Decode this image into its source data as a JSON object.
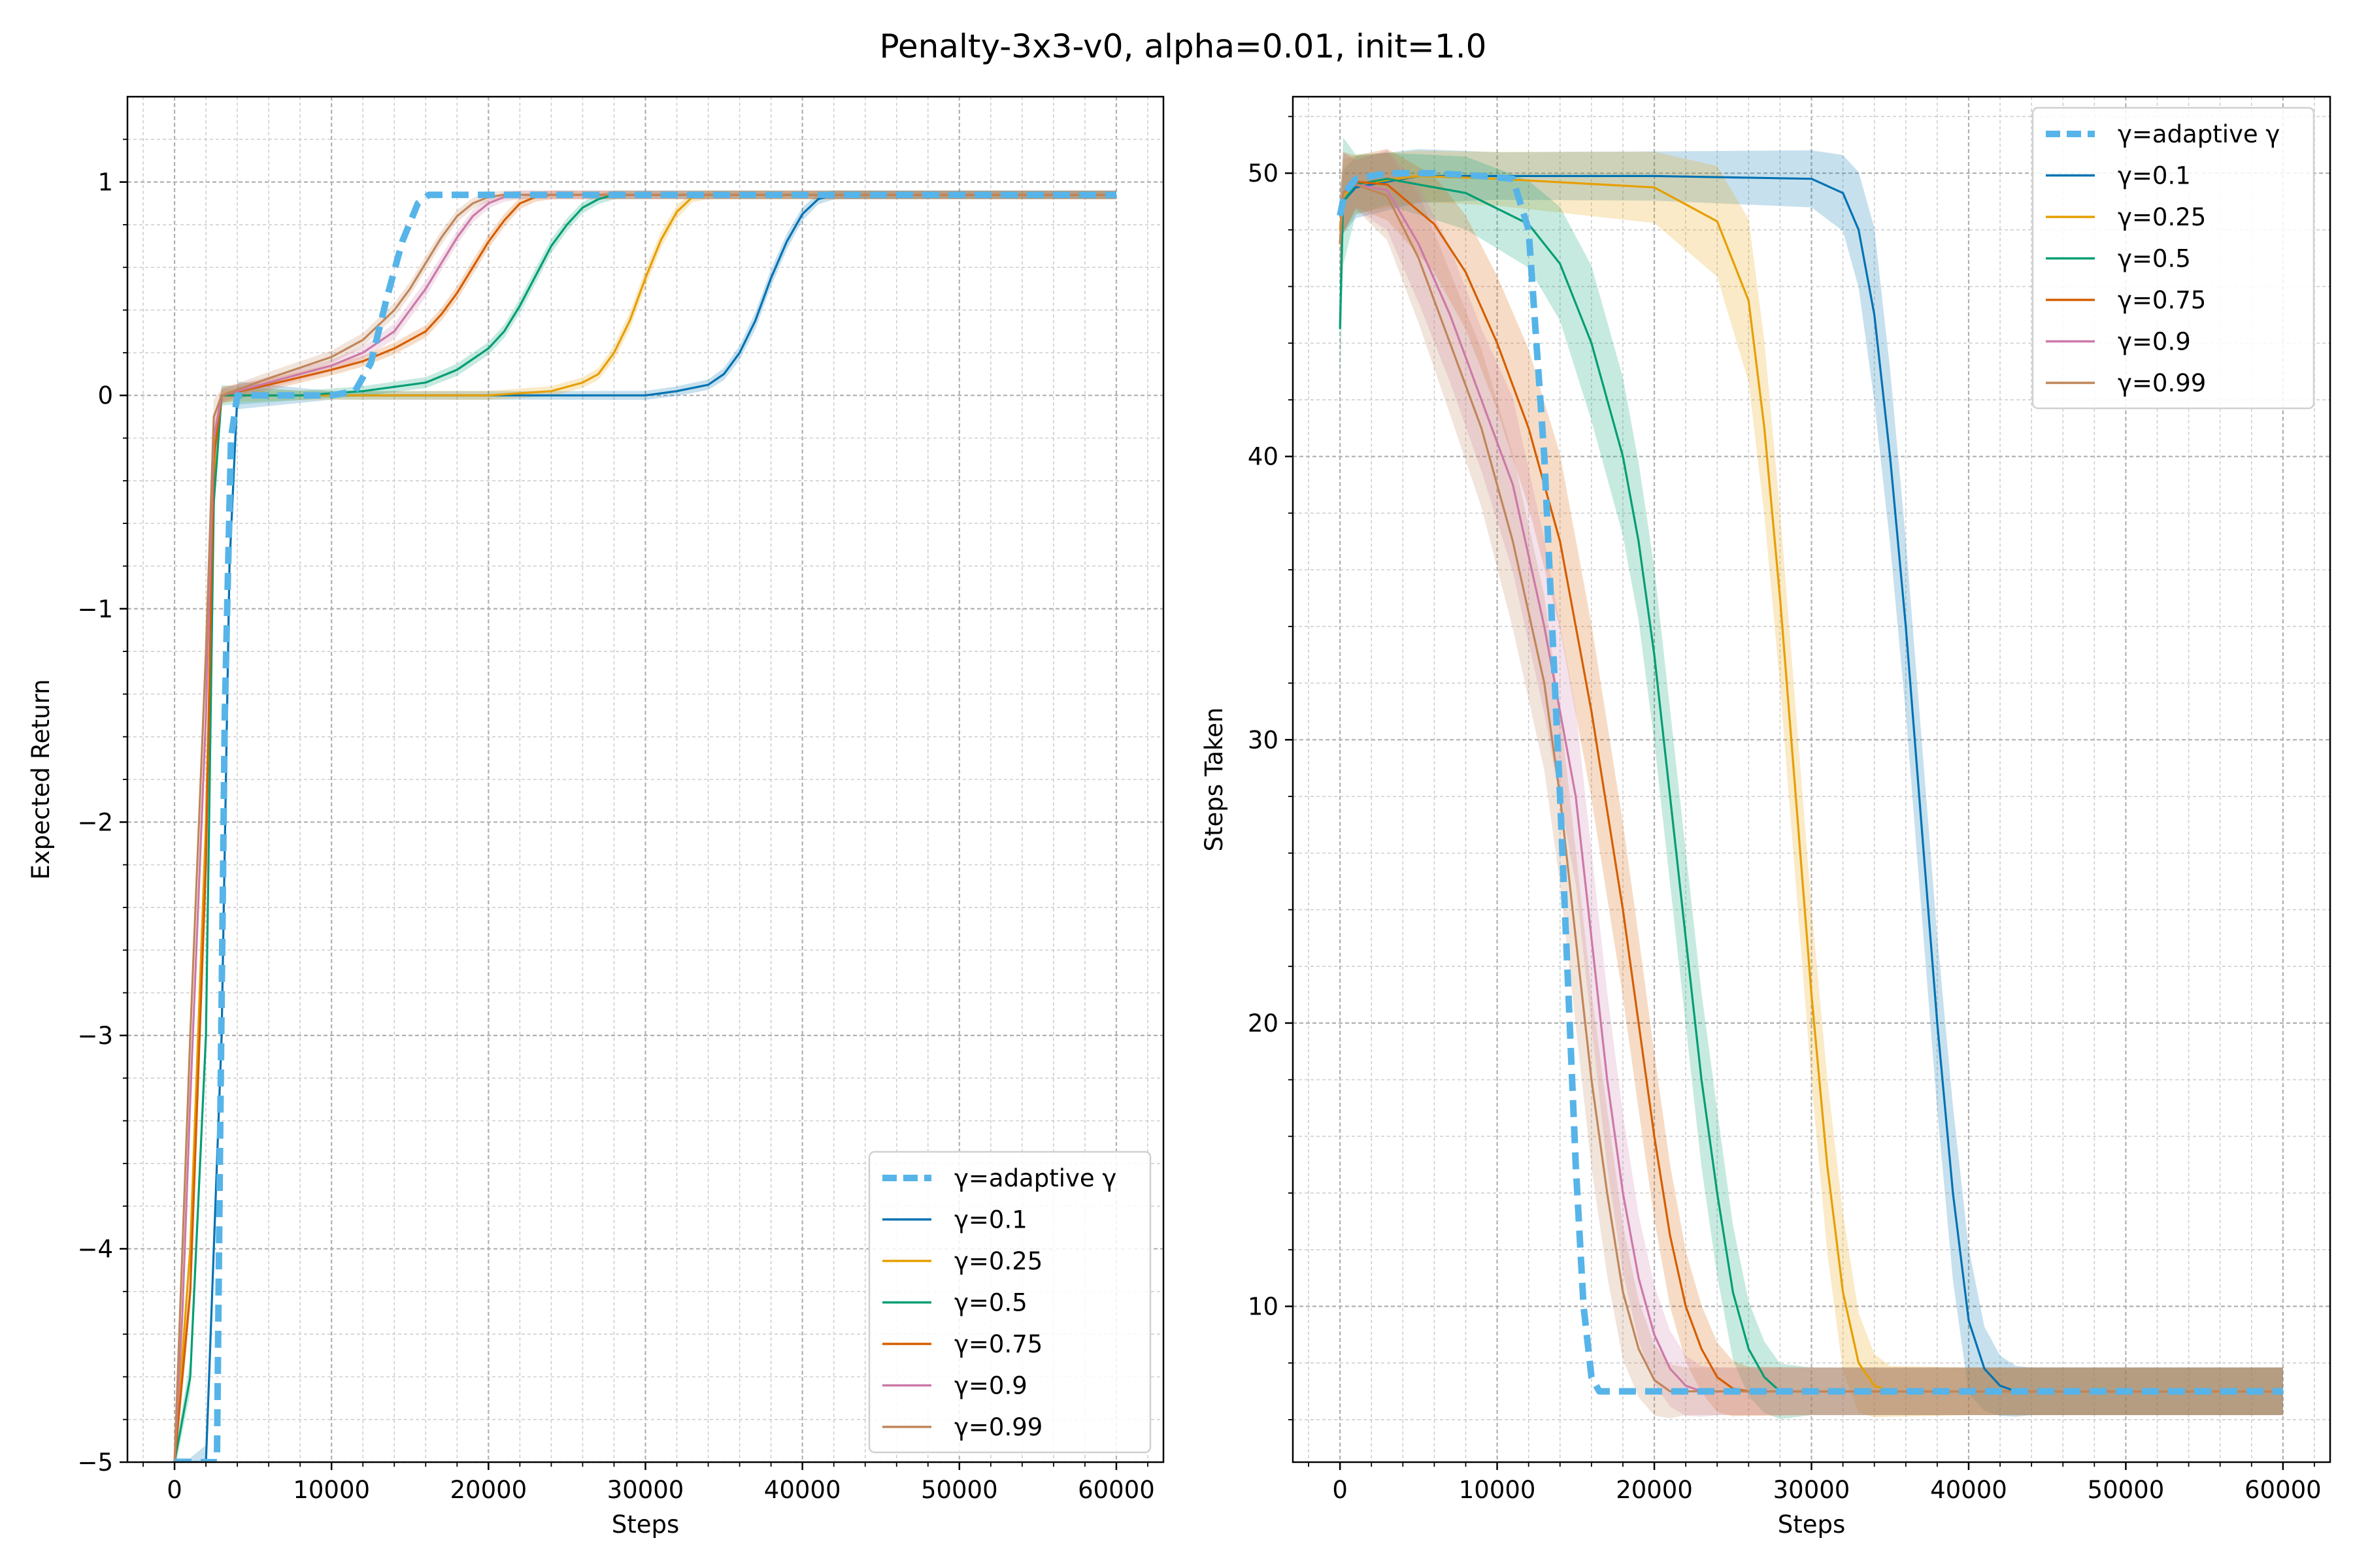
{
  "title": "Penalty-3x3-v0, alpha=0.01, init=1.0",
  "colors": {
    "adaptive": "#56b4e9",
    "g01": "#0072b2",
    "g025": "#e69f00",
    "g05": "#009e73",
    "g075": "#d55e00",
    "g09": "#cc79a7",
    "g099": "#c0865a"
  },
  "chart_data": [
    {
      "type": "line",
      "title": "",
      "xlabel": "Steps",
      "ylabel": "Expected Return",
      "xlim": [
        -3000,
        63000
      ],
      "ylim": [
        -5,
        1.4
      ],
      "xticks": [
        0,
        10000,
        20000,
        30000,
        40000,
        50000,
        60000
      ],
      "yticks": [
        -5,
        -4,
        -3,
        -2,
        -1,
        0,
        1
      ],
      "ytick_labels": [
        "−5",
        "−4",
        "−3",
        "−2",
        "−1",
        "0",
        "1"
      ],
      "grid": true,
      "legend_position": "lower-right",
      "series": [
        {
          "name": "γ=adaptive γ",
          "key": "adaptive",
          "dashed": true,
          "x": [
            0,
            1000,
            2000,
            2700,
            2900,
            3200,
            3600,
            4000,
            6000,
            8000,
            10000,
            11500,
            12500,
            13500,
            14500,
            15500,
            16200,
            17000,
            20000,
            30000,
            40000,
            50000,
            60000
          ],
          "y": [
            -5,
            -5,
            -5,
            -5,
            -3.5,
            -1.5,
            -0.2,
            0.0,
            0.0,
            0.0,
            0.0,
            0.02,
            0.15,
            0.45,
            0.72,
            0.9,
            0.94,
            0.94,
            0.94,
            0.94,
            0.94,
            0.94,
            0.94
          ]
        },
        {
          "name": "γ=0.1",
          "key": "g01",
          "x": [
            0,
            1000,
            2000,
            3000,
            3500,
            4000,
            10000,
            20000,
            30000,
            32000,
            34000,
            35000,
            36000,
            37000,
            38000,
            39000,
            40000,
            41000,
            42000,
            45000,
            50000,
            60000
          ],
          "y": [
            -5,
            -5,
            -5,
            -3.0,
            -0.8,
            0.0,
            0.0,
            0.0,
            0.0,
            0.02,
            0.05,
            0.1,
            0.2,
            0.35,
            0.55,
            0.72,
            0.85,
            0.92,
            0.94,
            0.94,
            0.94,
            0.94
          ]
        },
        {
          "name": "γ=0.25",
          "key": "g025",
          "x": [
            0,
            1000,
            2000,
            2600,
            3000,
            10000,
            20000,
            24000,
            26000,
            27000,
            28000,
            29000,
            30000,
            31000,
            32000,
            33000,
            34000,
            40000,
            50000,
            60000
          ],
          "y": [
            -5,
            -4.0,
            -2.0,
            -0.2,
            0.0,
            0.0,
            0.0,
            0.02,
            0.06,
            0.1,
            0.2,
            0.35,
            0.55,
            0.73,
            0.86,
            0.93,
            0.94,
            0.94,
            0.94,
            0.94
          ]
        },
        {
          "name": "γ=0.5",
          "key": "g05",
          "x": [
            0,
            1000,
            2000,
            2500,
            3000,
            8000,
            12000,
            16000,
            18000,
            20000,
            21000,
            22000,
            23000,
            24000,
            25000,
            26000,
            27000,
            28000,
            30000,
            40000,
            50000,
            60000
          ],
          "y": [
            -5,
            -4.6,
            -3.0,
            -0.5,
            0.0,
            0.0,
            0.02,
            0.06,
            0.12,
            0.22,
            0.3,
            0.42,
            0.56,
            0.7,
            0.8,
            0.88,
            0.92,
            0.94,
            0.94,
            0.94,
            0.94,
            0.94
          ]
        },
        {
          "name": "γ=0.75",
          "key": "g075",
          "x": [
            0,
            1000,
            2000,
            2500,
            3000,
            6000,
            10000,
            12000,
            14000,
            16000,
            17000,
            18000,
            19000,
            20000,
            21000,
            22000,
            23000,
            24000,
            26000,
            30000,
            40000,
            50000,
            60000
          ],
          "y": [
            -5,
            -4.2,
            -2.2,
            -0.3,
            0.0,
            0.05,
            0.12,
            0.16,
            0.22,
            0.3,
            0.38,
            0.48,
            0.6,
            0.72,
            0.82,
            0.9,
            0.93,
            0.94,
            0.94,
            0.94,
            0.94,
            0.94,
            0.94
          ]
        },
        {
          "name": "γ=0.9",
          "key": "g09",
          "x": [
            0,
            500,
            1000,
            2000,
            2500,
            3000,
            6000,
            10000,
            12000,
            14000,
            16000,
            17000,
            18000,
            19000,
            20000,
            21000,
            22000,
            24000,
            30000,
            40000,
            50000,
            60000
          ],
          "y": [
            -5,
            -4.3,
            -3.3,
            -1.5,
            -0.2,
            0.0,
            0.06,
            0.14,
            0.2,
            0.3,
            0.5,
            0.62,
            0.74,
            0.84,
            0.9,
            0.93,
            0.94,
            0.94,
            0.94,
            0.94,
            0.94,
            0.94
          ]
        },
        {
          "name": "γ=0.99",
          "key": "g099",
          "x": [
            0,
            500,
            1000,
            2000,
            2500,
            3000,
            6000,
            10000,
            12000,
            14000,
            15000,
            16000,
            17000,
            18000,
            19000,
            20000,
            21000,
            22000,
            30000,
            40000,
            50000,
            60000
          ],
          "y": [
            -5,
            -4.0,
            -3.0,
            -1.2,
            -0.1,
            0.0,
            0.08,
            0.18,
            0.26,
            0.4,
            0.5,
            0.62,
            0.74,
            0.84,
            0.9,
            0.93,
            0.94,
            0.94,
            0.94,
            0.94,
            0.94,
            0.94
          ]
        }
      ]
    },
    {
      "type": "line",
      "title": "",
      "xlabel": "Steps",
      "ylabel": "Steps Taken",
      "xlim": [
        -3000,
        63000
      ],
      "ylim": [
        4.5,
        52.7
      ],
      "xticks": [
        0,
        10000,
        20000,
        30000,
        40000,
        50000,
        60000
      ],
      "yticks": [
        10,
        20,
        30,
        40,
        50
      ],
      "ytick_labels": [
        "10",
        "20",
        "30",
        "40",
        "50"
      ],
      "grid": true,
      "legend_position": "upper-right",
      "series": [
        {
          "name": "γ=adaptive γ",
          "key": "adaptive",
          "dashed": true,
          "x": [
            0,
            300,
            1000,
            3000,
            6000,
            9000,
            11000,
            12000,
            13000,
            14000,
            15000,
            15500,
            16000,
            16500,
            17000,
            20000,
            30000,
            40000,
            50000,
            60000
          ],
          "y": [
            48.5,
            49.3,
            49.8,
            50,
            50,
            49.9,
            49.8,
            48,
            40,
            28,
            15,
            10,
            7.5,
            7.0,
            7.0,
            7.0,
            7.0,
            7.0,
            7.0,
            7.0
          ]
        },
        {
          "name": "γ=0.1",
          "key": "g01",
          "x": [
            0,
            200,
            1000,
            5000,
            10000,
            20000,
            30000,
            32000,
            33000,
            34000,
            35000,
            36000,
            37000,
            38000,
            39000,
            40000,
            41000,
            42000,
            43000,
            44000,
            50000,
            60000
          ],
          "y": [
            48.5,
            49.0,
            49.5,
            49.9,
            49.9,
            49.9,
            49.8,
            49.3,
            48,
            45,
            40,
            34,
            27,
            20,
            14,
            9.5,
            7.8,
            7.2,
            7.0,
            7.0,
            7.0,
            7.0
          ]
        },
        {
          "name": "γ=0.25",
          "key": "g025",
          "x": [
            0,
            200,
            1000,
            5000,
            10000,
            20000,
            24000,
            26000,
            27000,
            28000,
            29000,
            30000,
            31000,
            32000,
            33000,
            34000,
            35000,
            40000,
            50000,
            60000
          ],
          "y": [
            48.0,
            49.2,
            49.6,
            49.9,
            49.8,
            49.5,
            48.3,
            45.5,
            41,
            35,
            28,
            21,
            15,
            10.5,
            8,
            7.2,
            7.0,
            7.0,
            7.0,
            7.0
          ]
        },
        {
          "name": "γ=0.5",
          "key": "g05",
          "x": [
            0,
            200,
            1000,
            3000,
            8000,
            12000,
            14000,
            16000,
            18000,
            19000,
            20000,
            21000,
            22000,
            23000,
            24000,
            25000,
            26000,
            27000,
            28000,
            30000,
            40000,
            50000,
            60000
          ],
          "y": [
            44.5,
            49.0,
            49.6,
            49.8,
            49.3,
            48.2,
            46.8,
            44,
            40,
            37,
            33,
            28,
            23,
            18,
            14,
            10.5,
            8.5,
            7.5,
            7.0,
            7.0,
            7.0,
            7.0,
            7.0
          ]
        },
        {
          "name": "γ=0.75",
          "key": "g075",
          "x": [
            0,
            200,
            1000,
            3000,
            6000,
            8000,
            10000,
            12000,
            14000,
            16000,
            18000,
            19000,
            20000,
            21000,
            22000,
            23000,
            24000,
            25000,
            26000,
            30000,
            40000,
            50000,
            60000
          ],
          "y": [
            47.5,
            49.3,
            49.7,
            49.6,
            48.2,
            46.5,
            44,
            41,
            37,
            31,
            24,
            20,
            16,
            12.5,
            10,
            8.5,
            7.5,
            7.1,
            7.0,
            7.0,
            7.0,
            7.0,
            7.0
          ]
        },
        {
          "name": "γ=0.9",
          "key": "g09",
          "x": [
            0,
            200,
            1000,
            3000,
            5000,
            7000,
            9000,
            11000,
            13000,
            15000,
            16000,
            17000,
            18000,
            19000,
            20000,
            21000,
            22000,
            23000,
            24000,
            30000,
            40000,
            50000,
            60000
          ],
          "y": [
            47.5,
            49.3,
            49.6,
            49.4,
            47.5,
            45,
            42,
            39,
            34,
            28,
            23,
            18,
            14,
            11,
            9,
            7.8,
            7.2,
            7.0,
            7.0,
            7.0,
            7.0,
            7.0,
            7.0
          ]
        },
        {
          "name": "γ=0.99",
          "key": "g099",
          "x": [
            0,
            200,
            1000,
            3000,
            5000,
            7000,
            9000,
            11000,
            13000,
            14000,
            15000,
            16000,
            17000,
            18000,
            19000,
            20000,
            21000,
            22000,
            30000,
            40000,
            50000,
            60000
          ],
          "y": [
            47.5,
            49.3,
            49.6,
            49.2,
            47,
            44,
            41,
            37,
            32,
            28,
            23,
            18,
            14,
            10.5,
            8.5,
            7.4,
            7.0,
            7.0,
            7.0,
            7.0,
            7.0,
            7.0
          ]
        }
      ]
    }
  ]
}
